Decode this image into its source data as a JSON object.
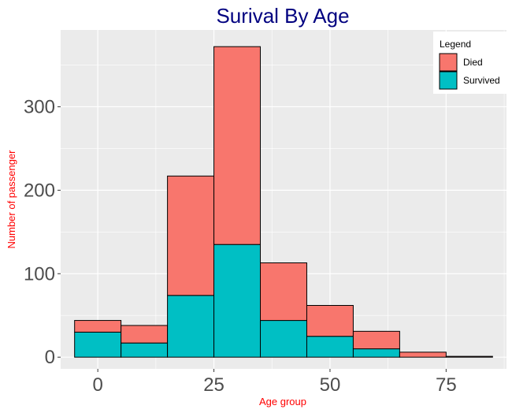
{
  "chart_data": {
    "type": "bar",
    "stacked": true,
    "title": "Surival By Age",
    "xlabel": "Age group",
    "ylabel": "Number of passenger",
    "xlim": [
      -8,
      88
    ],
    "ylim": [
      -14,
      392
    ],
    "x_ticks": [
      0,
      25,
      50,
      75
    ],
    "y_ticks": [
      0,
      100,
      200,
      300
    ],
    "bin_width": 10,
    "bin_centers": [
      0,
      10,
      20,
      30,
      40,
      50,
      60,
      70,
      80
    ],
    "series": [
      {
        "name": "Survived",
        "color": "#00BFC4",
        "values": [
          30,
          17,
          74,
          135,
          44,
          25,
          10,
          0,
          0
        ]
      },
      {
        "name": "Died",
        "color": "#F8766D",
        "values": [
          14,
          21,
          143,
          237,
          69,
          37,
          21,
          6,
          1
        ]
      }
    ],
    "legend": {
      "title": "Legend",
      "position": "top-right",
      "order": [
        "Died",
        "Survived"
      ]
    },
    "grid": true,
    "panel_color": "#EBEBEB",
    "title_color": "#000080",
    "label_color": "#FF0000"
  }
}
